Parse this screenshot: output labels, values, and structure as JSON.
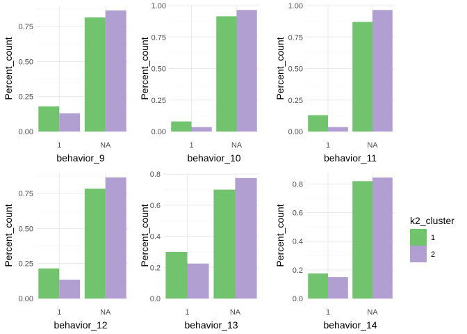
{
  "chart_data": [
    {
      "type": "bar",
      "xlabel": "behavior_9",
      "ylabel": "Percent_count",
      "categories": [
        "1",
        "NA"
      ],
      "series": [
        {
          "name": "1",
          "values": [
            0.18,
            0.815
          ]
        },
        {
          "name": "2",
          "values": [
            0.13,
            0.865
          ]
        }
      ],
      "ylim": [
        0,
        0.9
      ],
      "yticks": [
        0.0,
        0.25,
        0.5,
        0.75
      ],
      "ytick_labels": [
        "0.00",
        "0.25",
        "0.50",
        "0.75"
      ]
    },
    {
      "type": "bar",
      "xlabel": "behavior_10",
      "ylabel": "Percent_count",
      "categories": [
        "1",
        "NA"
      ],
      "series": [
        {
          "name": "1",
          "values": [
            0.08,
            0.915
          ]
        },
        {
          "name": "2",
          "values": [
            0.035,
            0.965
          ]
        }
      ],
      "ylim": [
        0,
        1.0
      ],
      "yticks": [
        0.0,
        0.25,
        0.5,
        0.75,
        1.0
      ],
      "ytick_labels": [
        "0.00",
        "0.25",
        "0.50",
        "0.75",
        "1.00"
      ]
    },
    {
      "type": "bar",
      "xlabel": "behavior_11",
      "ylabel": "Percent_count",
      "categories": [
        "1",
        "NA"
      ],
      "series": [
        {
          "name": "1",
          "values": [
            0.13,
            0.87
          ]
        },
        {
          "name": "2",
          "values": [
            0.035,
            0.965
          ]
        }
      ],
      "ylim": [
        0,
        1.0
      ],
      "yticks": [
        0.0,
        0.25,
        0.5,
        0.75,
        1.0
      ],
      "ytick_labels": [
        "0.00",
        "0.25",
        "0.50",
        "0.75",
        "1.00"
      ]
    },
    {
      "type": "bar",
      "xlabel": "behavior_12",
      "ylabel": "Percent_count",
      "categories": [
        "1",
        "NA"
      ],
      "series": [
        {
          "name": "1",
          "values": [
            0.215,
            0.785
          ]
        },
        {
          "name": "2",
          "values": [
            0.135,
            0.865
          ]
        }
      ],
      "ylim": [
        0,
        0.9
      ],
      "yticks": [
        0.0,
        0.25,
        0.5,
        0.75
      ],
      "ytick_labels": [
        "0.00",
        "0.25",
        "0.50",
        "0.75"
      ]
    },
    {
      "type": "bar",
      "xlabel": "behavior_13",
      "ylabel": "Percent_count",
      "categories": [
        "1",
        "NA"
      ],
      "series": [
        {
          "name": "1",
          "values": [
            0.3,
            0.7
          ]
        },
        {
          "name": "2",
          "values": [
            0.225,
            0.775
          ]
        }
      ],
      "ylim": [
        0,
        0.81
      ],
      "yticks": [
        0.0,
        0.2,
        0.4,
        0.6,
        0.8
      ],
      "ytick_labels": [
        "0.0",
        "0.2",
        "0.4",
        "0.6",
        "0.8"
      ]
    },
    {
      "type": "bar",
      "xlabel": "behavior_14",
      "ylabel": "Percent_count",
      "categories": [
        "1",
        "NA"
      ],
      "series": [
        {
          "name": "1",
          "values": [
            0.175,
            0.82
          ]
        },
        {
          "name": "2",
          "values": [
            0.15,
            0.845
          ]
        }
      ],
      "ylim": [
        0,
        0.88
      ],
      "yticks": [
        0.0,
        0.2,
        0.4,
        0.6,
        0.8
      ],
      "ytick_labels": [
        "0.0",
        "0.2",
        "0.4",
        "0.6",
        "0.8"
      ]
    }
  ],
  "legend": {
    "title": "k2_cluster",
    "placement": "right",
    "items": [
      {
        "label": "1",
        "color": "#72c36e"
      },
      {
        "label": "2",
        "color": "#b09fd0"
      }
    ]
  },
  "colors": {
    "series_1": "#72c36e",
    "series_2": "#b09fd0",
    "grid_major": "#ebebeb",
    "grid_minor": "#f5f5f5"
  },
  "grid": true
}
